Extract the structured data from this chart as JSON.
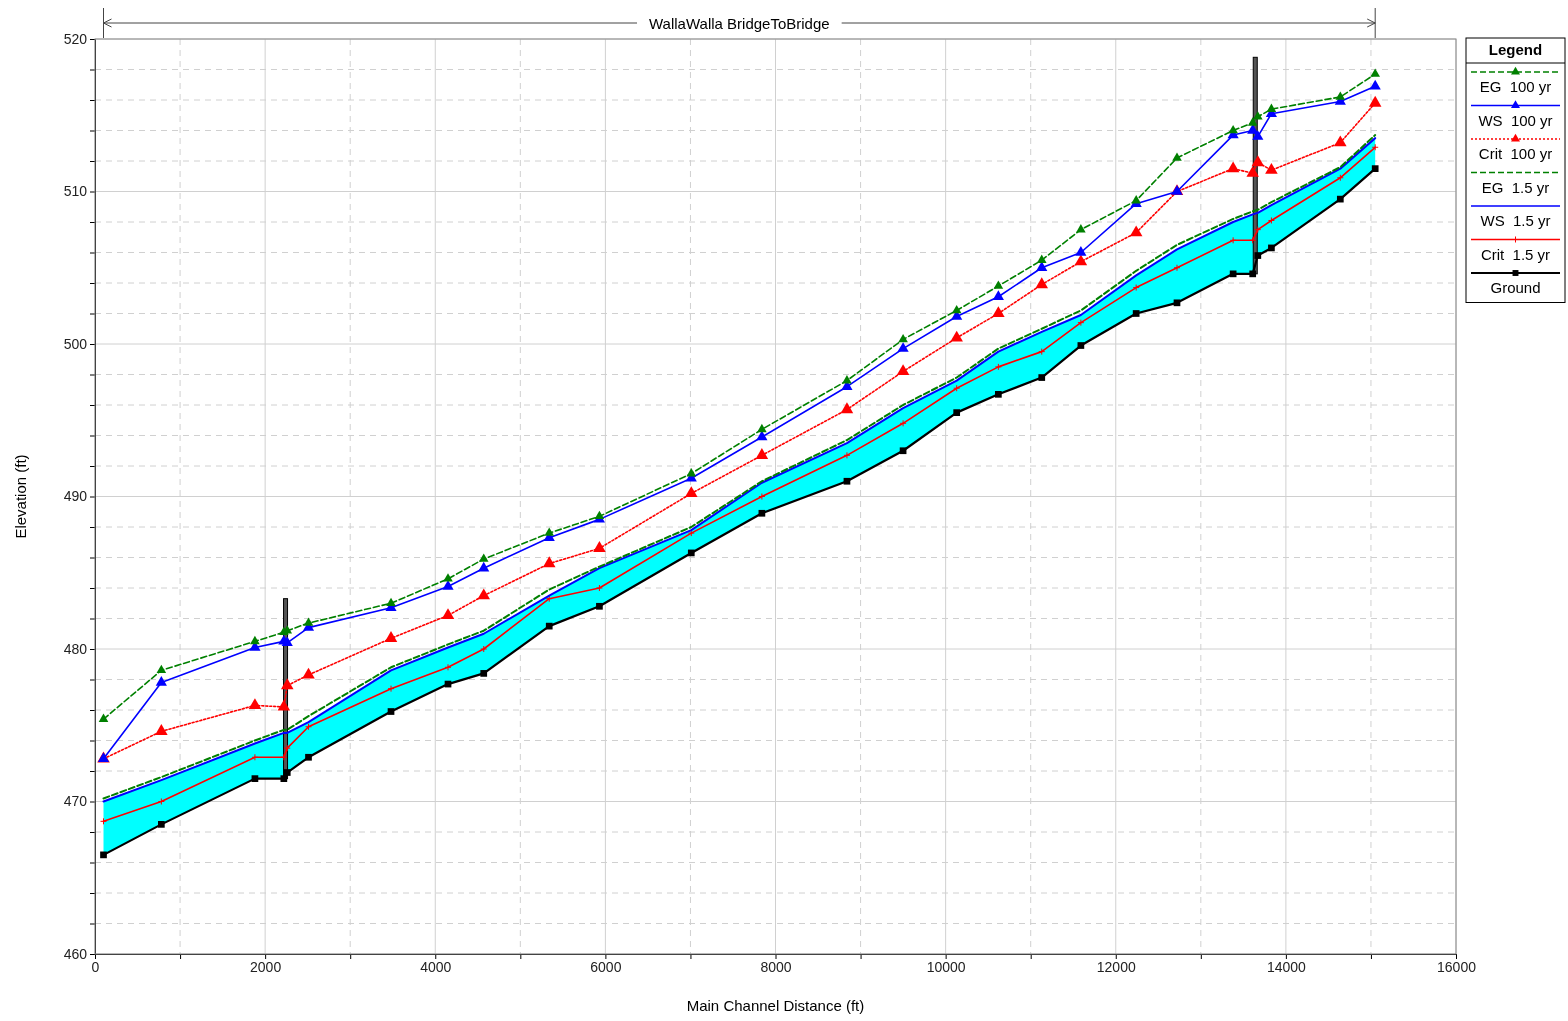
{
  "chart_data": {
    "type": "line",
    "title": "WallaWalla BridgeToBridge",
    "xlabel": "Main Channel Distance (ft)",
    "ylabel": "Elevation (ft)",
    "legend_title": "Legend",
    "x": [
      100,
      780,
      1880,
      2220,
      2260,
      2510,
      3480,
      4150,
      4570,
      5340,
      5930,
      7010,
      7840,
      8840,
      9500,
      10130,
      10620,
      11130,
      11590,
      12240,
      12720,
      13380,
      13610,
      13670,
      13830,
      14640,
      15050
    ],
    "series": [
      {
        "name": "EG  100 yr",
        "color": "#008000",
        "marker": "triangle",
        "line_style": "dashed",
        "values": [
          475.4,
          478.6,
          480.5,
          481.1,
          481.2,
          481.7,
          483.0,
          484.6,
          485.9,
          487.6,
          488.7,
          491.5,
          494.4,
          497.6,
          500.3,
          502.2,
          503.8,
          505.5,
          507.5,
          509.4,
          512.2,
          514.0,
          514.5,
          514.9,
          515.4,
          516.2,
          517.7
        ]
      },
      {
        "name": "WS  100 yr",
        "color": "#0000ff",
        "marker": "triangle",
        "line_style": "solid",
        "values": [
          472.8,
          477.8,
          480.1,
          480.5,
          480.4,
          481.4,
          482.7,
          484.1,
          485.3,
          487.3,
          488.5,
          491.2,
          493.9,
          497.2,
          499.7,
          501.8,
          503.1,
          505.0,
          506.0,
          509.2,
          510.0,
          513.7,
          514.0,
          513.6,
          515.1,
          515.9,
          516.9
        ]
      },
      {
        "name": "Crit  100 yr",
        "color": "#ff0000",
        "marker": "triangle",
        "line_style": "dotted",
        "values": [
          472.8,
          474.6,
          476.3,
          476.2,
          477.6,
          478.3,
          480.7,
          482.2,
          483.5,
          485.6,
          486.6,
          490.2,
          492.7,
          495.7,
          498.2,
          500.4,
          502.0,
          503.9,
          505.4,
          507.3,
          510.0,
          511.5,
          511.2,
          511.9,
          511.4,
          513.2,
          515.8
        ]
      },
      {
        "name": "EG  1.5 yr",
        "color": "#008000",
        "marker": "none",
        "line_style": "dashed",
        "values": [
          470.2,
          471.6,
          474.0,
          474.7,
          474.7,
          475.6,
          478.8,
          480.3,
          481.2,
          483.9,
          485.4,
          488.0,
          491.0,
          493.7,
          496.0,
          497.8,
          499.7,
          501.0,
          502.2,
          504.8,
          506.5,
          508.2,
          508.7,
          508.8,
          509.3,
          511.6,
          513.7
        ]
      },
      {
        "name": "WS  1.5 yr",
        "color": "#0000ff",
        "marker": "none",
        "line_style": "solid",
        "values": [
          470.0,
          471.4,
          473.8,
          474.5,
          474.5,
          475.2,
          478.6,
          480.1,
          481.0,
          483.5,
          485.3,
          487.8,
          490.9,
          493.5,
          495.8,
          497.6,
          499.5,
          500.8,
          501.9,
          504.5,
          506.2,
          508.0,
          508.5,
          508.6,
          509.1,
          511.5,
          513.5
        ],
        "lower": [
          466.5,
          468.5,
          471.5,
          471.5,
          471.9,
          472.9,
          475.9,
          477.7,
          478.4,
          481.5,
          482.8,
          486.3,
          488.9,
          491.0,
          493.0,
          495.5,
          496.7,
          497.8,
          499.9,
          502.0,
          502.7,
          504.6,
          504.6,
          505.8,
          506.3,
          509.5,
          511.5
        ],
        "upper": [
          470.0,
          471.4,
          473.8,
          474.5,
          474.5,
          475.2,
          478.6,
          480.1,
          481.0,
          483.5,
          485.3,
          487.8,
          490.9,
          493.5,
          495.8,
          497.6,
          499.5,
          500.8,
          501.9,
          504.5,
          506.2,
          508.0,
          508.5,
          508.6,
          509.1,
          511.5,
          513.5
        ]
      },
      {
        "name": "Crit  1.5 yr",
        "color": "#ff0000",
        "marker": "cross",
        "line_style": "solid",
        "values": [
          468.7,
          470.0,
          472.9,
          472.9,
          473.5,
          474.9,
          477.4,
          478.8,
          480.0,
          483.3,
          484.0,
          487.6,
          490.0,
          492.7,
          494.8,
          497.1,
          498.5,
          499.5,
          501.4,
          503.7,
          505.0,
          506.8,
          506.8,
          507.5,
          508.1,
          510.9,
          512.9
        ]
      },
      {
        "name": "Ground",
        "color": "#000000",
        "marker": "square",
        "line_style": "solid",
        "values": [
          466.5,
          468.5,
          471.5,
          471.5,
          471.9,
          472.9,
          475.9,
          477.7,
          478.4,
          481.5,
          482.8,
          486.3,
          488.9,
          491.0,
          493.0,
          495.5,
          496.7,
          497.8,
          499.9,
          502.0,
          502.7,
          504.6,
          504.6,
          505.8,
          506.3,
          509.5,
          511.5
        ]
      }
    ],
    "xlim": [
      0,
      16000
    ],
    "ylim": [
      460,
      520
    ],
    "xticks": [
      0,
      {
        "value": 1000,
        "label": null
      },
      2000,
      {
        "value": 3000,
        "label": null
      },
      4000,
      {
        "value": 5000,
        "label": null
      },
      6000,
      {
        "value": 7000,
        "label": null
      },
      8000,
      {
        "value": 9000,
        "label": null
      },
      10000,
      {
        "value": 11000,
        "label": null
      },
      12000,
      {
        "value": 13000,
        "label": null
      },
      14000,
      {
        "value": 15000,
        "label": null
      },
      16000
    ],
    "yticks": [
      460,
      {
        "value": 462,
        "label": null
      },
      {
        "value": 464,
        "label": null
      },
      {
        "value": 466,
        "label": null
      },
      {
        "value": 468,
        "label": null
      },
      470,
      {
        "value": 472,
        "label": null
      },
      {
        "value": 474,
        "label": null
      },
      {
        "value": 476,
        "label": null
      },
      {
        "value": 478,
        "label": null
      },
      480,
      {
        "value": 482,
        "label": null
      },
      {
        "value": 484,
        "label": null
      },
      {
        "value": 486,
        "label": null
      },
      {
        "value": 488,
        "label": null
      },
      490,
      {
        "value": 492,
        "label": null
      },
      {
        "value": 494,
        "label": null
      },
      {
        "value": 496,
        "label": null
      },
      {
        "value": 498,
        "label": null
      },
      500,
      {
        "value": 502,
        "label": null
      },
      {
        "value": 504,
        "label": null
      },
      {
        "value": 506,
        "label": null
      },
      {
        "value": 508,
        "label": null
      },
      510,
      {
        "value": 512,
        "label": null
      },
      {
        "value": 514,
        "label": null
      },
      {
        "value": 516,
        "label": null
      },
      {
        "value": 518,
        "label": null
      },
      520
    ],
    "grid": true,
    "legend": "top right"
  }
}
